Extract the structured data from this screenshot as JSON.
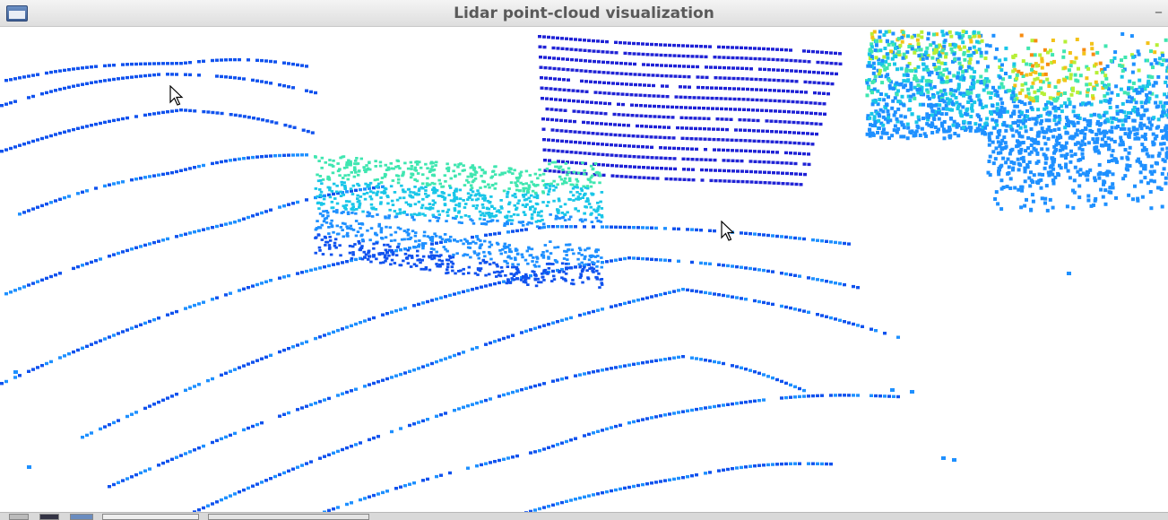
{
  "window": {
    "title": "Lidar point-cloud visualization",
    "minimize_glyph": "–"
  },
  "viewport": {
    "background": "#ffffff",
    "colormap": [
      "#1f22d6",
      "#1052ee",
      "#1e90ff",
      "#19c6e8",
      "#3fe6b0",
      "#b6ef36",
      "#f3c218",
      "#f78b10"
    ],
    "objects": [
      "ground-scan-rings",
      "wall-scan-lines",
      "parked-car-cluster",
      "vegetation-cluster"
    ]
  },
  "icons": [
    "window-menu-icon",
    "minimize-icon",
    "mouse-cursor-icon",
    "taskbar-app-icon"
  ]
}
